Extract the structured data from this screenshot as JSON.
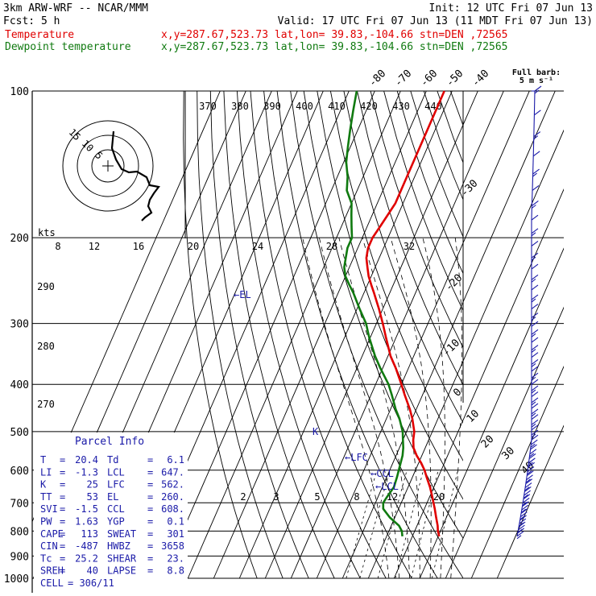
{
  "header": {
    "model": "3km ARW-WRF -- NCAR/MMM",
    "init": "Init: 12 UTC Fri 07 Jun 13",
    "fcst": "Fcst:     5 h",
    "valid": "Valid: 17 UTC Fri 07 Jun 13 (11 MDT Fri 07 Jun 13)",
    "temp_label": "Temperature",
    "temp_info": "x,y=287.67,523.73   lat,lon= 39.83,-104.66  stn=DEN ,72565",
    "dew_label": "Dewpoint temperature",
    "dew_info": "x,y=287.67,523.73   lat,lon= 39.83,-104.66  stn=DEN ,72565"
  },
  "colors": {
    "temperature": "#e00000",
    "dewpoint": "#107a10",
    "parcel": "#1a1aa8",
    "wind": "#1a1aa8"
  },
  "barb_note": {
    "line1": "Full barb:",
    "line2": "5 m s⁻¹"
  },
  "pressure_labels": [
    "100",
    "200",
    "300",
    "400",
    "500",
    "600",
    "700",
    "800",
    "900",
    "1000"
  ],
  "isotherm_labels_top": [
    "-80",
    "-70",
    "-60",
    "-50",
    "-40"
  ],
  "isotherm_labels_right": [
    "-30",
    "-20",
    "-10",
    "0",
    "10",
    "20",
    "30",
    "40"
  ],
  "theta_labels_top": [
    "370",
    "380",
    "390",
    "400",
    "410",
    "420",
    "430",
    "440"
  ],
  "theta_labels_left": [
    "290",
    "280",
    "270"
  ],
  "mixing_ratio_labels": [
    "2",
    "3",
    "5",
    "8",
    "12",
    "20"
  ],
  "hodograph": {
    "kts_label": "kts",
    "ring_labels": [
      "15",
      "10",
      "5"
    ],
    "axis_labels": [
      "8",
      "12",
      "16",
      "20",
      "24",
      "28",
      "32"
    ]
  },
  "parcel_markers": {
    "el": "←EL",
    "lfc": "←LFC",
    "ccl": "←CCL",
    "lcl": "←LCL",
    "k": "K"
  },
  "parcel_info": {
    "title": "Parcel Info",
    "rows": [
      {
        "a_label": "T",
        "a_val": "20.4",
        "b_label": "Td",
        "b_val": "6.1"
      },
      {
        "a_label": "LI",
        "a_val": "-1.3",
        "b_label": "LCL",
        "b_val": "647."
      },
      {
        "a_label": "K",
        "a_val": "25",
        "b_label": "LFC",
        "b_val": "562."
      },
      {
        "a_label": "TT",
        "a_val": "53",
        "b_label": "EL",
        "b_val": "260."
      },
      {
        "a_label": "SVI",
        "a_val": "-1.5",
        "b_label": "CCL",
        "b_val": "608."
      },
      {
        "a_label": "PW",
        "a_val": "1.63",
        "b_label": "YGP",
        "b_val": "0.1"
      },
      {
        "a_label": "CAPE",
        "a_val": "113",
        "b_label": "SWEAT",
        "b_val": "301"
      },
      {
        "a_label": "CIN",
        "a_val": "-487",
        "b_label": "HWBZ",
        "b_val": "3658"
      },
      {
        "a_label": "Tc",
        "a_val": "25.2",
        "b_label": "SHEAR",
        "b_val": "23."
      },
      {
        "a_label": "SREH",
        "a_val": "40",
        "b_label": "LAPSE",
        "b_val": "8.8"
      }
    ],
    "cell_label": "CELL",
    "cell_val": "306/11"
  },
  "chart_data": {
    "type": "line",
    "y_axis": "pressure (hPa), log scale",
    "ylim": [
      1000,
      100
    ],
    "series": [
      {
        "name": "Temperature",
        "p": [
          820,
          800,
          780,
          750,
          720,
          700,
          680,
          650,
          620,
          600,
          580,
          560,
          540,
          520,
          500,
          470,
          450,
          420,
          400,
          370,
          350,
          320,
          300,
          280,
          260,
          250,
          240,
          230,
          220,
          210,
          200,
          190,
          180,
          170,
          160,
          150,
          140,
          130,
          120,
          110,
          100
        ],
        "t": [
          20.4,
          19.0,
          18.0,
          16.0,
          14.0,
          12.5,
          11.0,
          8.5,
          5.5,
          3.5,
          1.0,
          -2.0,
          -4.5,
          -6.0,
          -7.0,
          -10.0,
          -12.5,
          -17.0,
          -20.0,
          -25.0,
          -29.0,
          -34.0,
          -37.5,
          -41.5,
          -46.0,
          -48.5,
          -51.0,
          -53.0,
          -55.0,
          -56.0,
          -56.0,
          -55.0,
          -54.0,
          -53.0,
          -53.0,
          -53.0,
          -53.0,
          -53.0,
          -53.0,
          -53.0,
          -53.0
        ]
      },
      {
        "name": "Dewpoint temperature",
        "p": [
          820,
          800,
          780,
          750,
          720,
          700,
          680,
          650,
          620,
          600,
          580,
          560,
          540,
          520,
          500,
          470,
          450,
          420,
          400,
          370,
          350,
          320,
          300,
          280,
          260,
          250,
          240,
          230,
          220,
          210,
          200,
          190,
          180,
          170,
          160,
          150,
          140,
          130,
          120,
          110,
          100
        ],
        "t": [
          6.1,
          5.0,
          3.0,
          -2.0,
          -6.0,
          -7.0,
          -6.5,
          -5.5,
          -6.0,
          -6.5,
          -7.0,
          -7.5,
          -8.5,
          -10.0,
          -11.5,
          -15.0,
          -18.0,
          -22.0,
          -25.0,
          -31.0,
          -35.0,
          -40.5,
          -44.0,
          -49.0,
          -54.0,
          -57.0,
          -60.0,
          -62.0,
          -63.0,
          -64.0,
          -64.0,
          -66.0,
          -68.0,
          -70.0,
          -74.0,
          -76.0,
          -79.0,
          -81.0,
          -83.0,
          -85.0,
          -87.0
        ]
      }
    ]
  }
}
